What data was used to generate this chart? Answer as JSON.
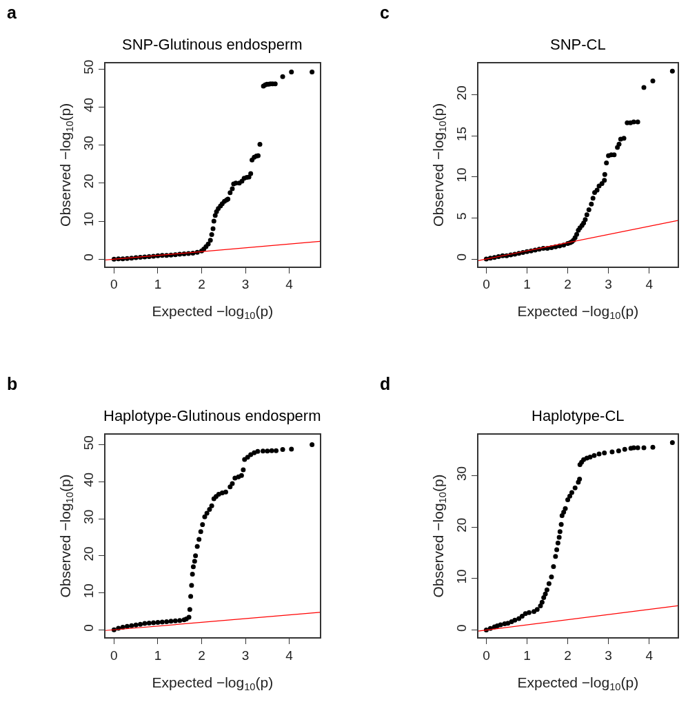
{
  "chart_data": [
    {
      "type": "scatter",
      "title": "SNP-Glutinous endosperm",
      "xlabel": "Expected −log$_{10}$(p)",
      "ylabel": "Observed −log$_{10}$(p)",
      "annotations": [
        "a"
      ],
      "xlim": [
        -0.2,
        4.7
      ],
      "ylim": [
        -1.9,
        51.5
      ],
      "xticks": [
        0,
        1,
        2,
        3,
        4
      ],
      "yticks": [
        0,
        10,
        20,
        30,
        40,
        50
      ],
      "series": [
        {
          "color": "#000000",
          "marker": "circle",
          "x": [
            0,
            0.1,
            0.2,
            0.3,
            0.4,
            0.5,
            0.6,
            0.7,
            0.8,
            0.9,
            1.0,
            1.1,
            1.2,
            1.3,
            1.4,
            1.5,
            1.6,
            1.7,
            1.8,
            1.9,
            2.0,
            2.05,
            2.1,
            2.15,
            2.2,
            2.23,
            2.26,
            2.28,
            2.31,
            2.34,
            2.38,
            2.43,
            2.47,
            2.52,
            2.57,
            2.6,
            2.65,
            2.7,
            2.73,
            2.78,
            2.86,
            2.92,
            2.97,
            3.03,
            3.08,
            3.12,
            3.15,
            3.2,
            3.25,
            3.29,
            3.33,
            3.41,
            3.45,
            3.49,
            3.53,
            3.57,
            3.62,
            3.68,
            3.85,
            4.05,
            4.52
          ],
          "values": [
            0,
            0.1,
            0.1,
            0.2,
            0.3,
            0.4,
            0.5,
            0.6,
            0.7,
            0.8,
            0.9,
            1.0,
            1.0,
            1.1,
            1.2,
            1.3,
            1.4,
            1.5,
            1.6,
            1.8,
            2.2,
            2.7,
            3.3,
            4.0,
            5.0,
            6.5,
            8,
            10,
            11.5,
            12.5,
            13.3,
            14,
            14.6,
            15.2,
            15.6,
            15.8,
            17.5,
            18.5,
            19.8,
            20,
            20,
            20.5,
            21.3,
            21.5,
            21.6,
            22.5,
            26.1,
            26.8,
            27.1,
            27.2,
            30.2,
            45.5,
            45.8,
            46.0,
            46.0,
            46.1,
            46.1,
            46.1,
            48.0,
            49.2,
            49.2
          ]
        },
        {
          "type": "line",
          "color": "#ff0000",
          "x": [
            -0.2,
            4.7
          ],
          "values": [
            -0.2,
            4.7
          ]
        }
      ]
    },
    {
      "type": "scatter",
      "title": "SNP-CL",
      "xlabel": "Expected −log$_{10}$(p)",
      "ylabel": "Observed −log$_{10}$(p)",
      "annotations": [
        "c"
      ],
      "xlim": [
        -0.2,
        4.7
      ],
      "ylim": [
        -0.9,
        23.85
      ],
      "xticks": [
        0,
        1,
        2,
        3,
        4
      ],
      "yticks": [
        0,
        5,
        10,
        15,
        20
      ],
      "series": [
        {
          "color": "#000000",
          "marker": "circle",
          "x": [
            0,
            0.1,
            0.2,
            0.3,
            0.4,
            0.5,
            0.6,
            0.7,
            0.8,
            0.9,
            1.0,
            1.1,
            1.2,
            1.3,
            1.4,
            1.5,
            1.6,
            1.7,
            1.8,
            1.9,
            2.0,
            2.06,
            2.1,
            2.14,
            2.18,
            2.22,
            2.26,
            2.3,
            2.35,
            2.39,
            2.43,
            2.47,
            2.52,
            2.58,
            2.62,
            2.66,
            2.72,
            2.77,
            2.84,
            2.9,
            2.91,
            2.95,
            3.0,
            3.07,
            3.14,
            3.22,
            3.26,
            3.3,
            3.38,
            3.46,
            3.54,
            3.62,
            3.72,
            3.87,
            4.09,
            4.57
          ],
          "values": [
            0,
            0.1,
            0.2,
            0.3,
            0.4,
            0.4,
            0.5,
            0.6,
            0.7,
            0.8,
            0.9,
            1.0,
            1.1,
            1.2,
            1.3,
            1.3,
            1.4,
            1.5,
            1.6,
            1.7,
            1.9,
            2.0,
            2.1,
            2.3,
            2.6,
            3.0,
            3.5,
            3.8,
            4.1,
            4.4,
            4.8,
            5.4,
            6.0,
            6.7,
            7.4,
            8.1,
            8.4,
            8.9,
            9.2,
            9.6,
            10.3,
            11.7,
            12.6,
            12.7,
            12.7,
            13.6,
            14.0,
            14.6,
            14.7,
            16.6,
            16.6,
            16.7,
            16.7,
            20.9,
            21.7,
            22.9
          ]
        },
        {
          "type": "line",
          "color": "#ff0000",
          "x": [
            -0.2,
            4.7
          ],
          "values": [
            -0.2,
            4.7
          ]
        }
      ]
    },
    {
      "type": "scatter",
      "title": "Haplotype-Glutinous endosperm",
      "xlabel": "Expected −log$_{10}$(p)",
      "ylabel": "Observed −log$_{10}$(p)",
      "annotations": [
        "b"
      ],
      "xlim": [
        -0.2,
        4.7
      ],
      "ylim": [
        -2.1,
        52.8
      ],
      "xticks": [
        0,
        1,
        2,
        3,
        4
      ],
      "yticks": [
        0,
        10,
        20,
        30,
        40,
        50
      ],
      "series": [
        {
          "color": "#000000",
          "marker": "circle",
          "x": [
            0,
            0.1,
            0.2,
            0.3,
            0.4,
            0.5,
            0.6,
            0.7,
            0.8,
            0.9,
            1.0,
            1.1,
            1.2,
            1.3,
            1.4,
            1.5,
            1.6,
            1.65,
            1.71,
            1.73,
            1.75,
            1.77,
            1.79,
            1.81,
            1.84,
            1.86,
            1.9,
            1.94,
            1.98,
            2.02,
            2.07,
            2.12,
            2.18,
            2.23,
            2.28,
            2.33,
            2.39,
            2.47,
            2.55,
            2.65,
            2.7,
            2.76,
            2.84,
            2.91,
            2.95,
            2.98,
            3.05,
            3.12,
            3.2,
            3.28,
            3.4,
            3.5,
            3.6,
            3.7,
            3.85,
            4.05,
            4.52
          ],
          "values": [
            0,
            0.4,
            0.7,
            0.9,
            1.1,
            1.3,
            1.5,
            1.7,
            1.8,
            1.9,
            2.0,
            2.1,
            2.2,
            2.3,
            2.4,
            2.5,
            2.7,
            2.9,
            3.4,
            5.5,
            9,
            12,
            15,
            17,
            18.5,
            20,
            22.5,
            24.4,
            26.5,
            28.4,
            30.5,
            31.5,
            32.5,
            33.5,
            35.4,
            36,
            36.6,
            37,
            37.2,
            38.6,
            39.5,
            41,
            41.3,
            41.7,
            43.2,
            46,
            46.6,
            47.3,
            47.8,
            48.2,
            48.3,
            48.3,
            48.4,
            48.4,
            48.7,
            48.8,
            50.0
          ]
        },
        {
          "type": "line",
          "color": "#ff0000",
          "x": [
            -0.2,
            4.7
          ],
          "values": [
            -0.2,
            4.7
          ]
        }
      ]
    },
    {
      "type": "scatter",
      "title": "Haplotype-CL",
      "xlabel": "Expected −log$_{10}$(p)",
      "ylabel": "Observed −log$_{10}$(p)",
      "annotations": [
        "d"
      ],
      "xlim": [
        -0.2,
        4.7
      ],
      "ylim": [
        -1.46,
        38.0
      ],
      "xticks": [
        0,
        1,
        2,
        3,
        4
      ],
      "yticks": [
        0,
        10,
        20,
        30
      ],
      "series": [
        {
          "color": "#000000",
          "marker": "circle",
          "x": [
            0,
            0.1,
            0.2,
            0.27,
            0.35,
            0.45,
            0.53,
            0.62,
            0.7,
            0.8,
            0.88,
            0.96,
            1.05,
            1.17,
            1.25,
            1.33,
            1.37,
            1.41,
            1.45,
            1.49,
            1.54,
            1.6,
            1.65,
            1.7,
            1.73,
            1.76,
            1.79,
            1.81,
            1.84,
            1.86,
            1.9,
            1.94,
            2.0,
            2.05,
            2.1,
            2.18,
            2.26,
            2.29,
            2.3,
            2.34,
            2.39,
            2.47,
            2.55,
            2.65,
            2.77,
            2.9,
            3.09,
            3.25,
            3.4,
            3.55,
            3.62,
            3.72,
            3.87,
            4.09,
            4.57
          ],
          "values": [
            0,
            0.3,
            0.6,
            0.8,
            1.0,
            1.2,
            1.3,
            1.6,
            1.9,
            2.2,
            2.7,
            3.2,
            3.4,
            3.6,
            4.0,
            4.7,
            5.4,
            6.3,
            7.0,
            7.8,
            9.0,
            10.3,
            12.3,
            14.3,
            15.6,
            16.9,
            18.0,
            19.1,
            20.5,
            22.2,
            22.9,
            23.6,
            25.3,
            26.0,
            26.7,
            27.6,
            28.7,
            29.3,
            32.1,
            32.6,
            33.1,
            33.4,
            33.6,
            33.9,
            34.2,
            34.4,
            34.6,
            34.8,
            35.1,
            35.3,
            35.4,
            35.4,
            35.4,
            35.5,
            36.4
          ]
        },
        {
          "type": "line",
          "color": "#ff0000",
          "x": [
            -0.2,
            4.7
          ],
          "values": [
            -0.2,
            4.7
          ]
        }
      ]
    }
  ]
}
